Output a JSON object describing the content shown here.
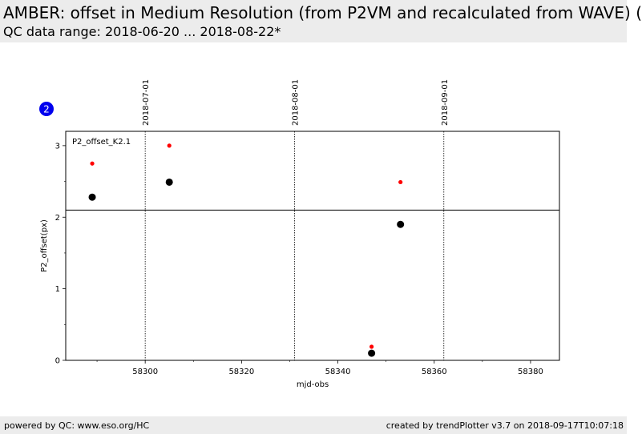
{
  "header": {
    "title": "AMBER: offset in Medium Resolution (from P2VM and recalculated from WAVE) (",
    "subtitle": "QC data range: 2018-06-20 ... 2018-08-22*"
  },
  "footer": {
    "left": "powered by QC: www.eso.org/HC",
    "right": "created by trendPlotter v3.7 on 2018-09-17T10:07:18"
  },
  "chart_data": {
    "type": "scatter",
    "badge": "2",
    "panel_label": "P2_offset_K2.1",
    "xlabel": "mjd-obs",
    "ylabel": "P2_offset(px)",
    "xlim": [
      58283.5,
      58386
    ],
    "ylim": [
      0,
      3.2
    ],
    "x_ticks": [
      58300,
      58320,
      58340,
      58360,
      58380
    ],
    "x_tick_labels": [
      "58300",
      "58320",
      "58340",
      "58360",
      "58380"
    ],
    "y_ticks": [
      0,
      1,
      2,
      3
    ],
    "y_tick_labels": [
      "0",
      "1",
      "2",
      "3"
    ],
    "date_markers": [
      {
        "x": 58300.0,
        "label": "2018-07-01"
      },
      {
        "x": 58331.0,
        "label": "2018-08-01"
      },
      {
        "x": 58362.0,
        "label": "2018-09-01"
      }
    ],
    "hline": 2.1,
    "series": [
      {
        "color": "#000000",
        "x": [
          58289,
          58305,
          58347,
          58353
        ],
        "y": [
          2.28,
          2.49,
          0.1,
          1.9
        ]
      },
      {
        "color": "#ff0000",
        "x": [
          58289,
          58305,
          58347,
          58353
        ],
        "y": [
          2.75,
          3.0,
          0.19,
          2.49
        ]
      }
    ],
    "colors": {
      "badge": "#0000ee",
      "grid": "#000000"
    }
  }
}
